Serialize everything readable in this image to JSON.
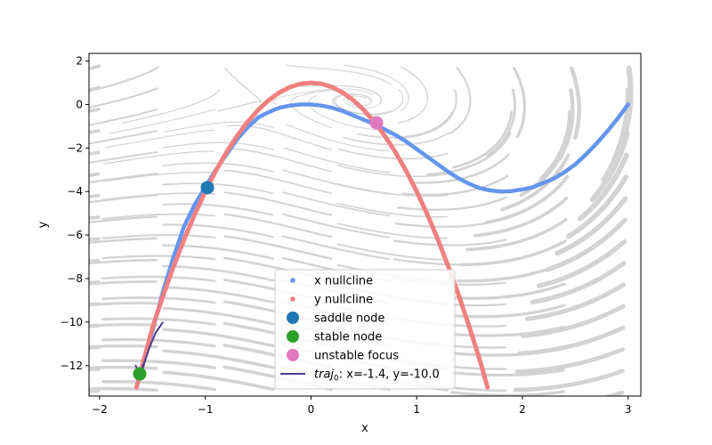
{
  "chart_data": {
    "type": "line",
    "title": "",
    "xlabel": "x",
    "ylabel": "y",
    "xlim": [
      -2.1,
      3.12
    ],
    "ylim": [
      -13.4,
      2.35
    ],
    "xticks": [
      -2,
      -1,
      0,
      1,
      2,
      3
    ],
    "yticks": [
      2,
      0,
      -2,
      -4,
      -6,
      -8,
      -10,
      -12
    ],
    "grid": false,
    "legend_position": "bottom-center",
    "colors": {
      "x_nullcline": "#6495ed",
      "y_nullcline": "#f08080",
      "saddle": "#1f77b4",
      "stable": "#2ca02c",
      "unstable": "#e377c2",
      "trajectory": "#4b3c8c",
      "stream": "#d3d3d3"
    },
    "series": [
      {
        "name": "x nullcline",
        "kind": "points",
        "x": [
          -1.65,
          -1.5,
          -1.4,
          -1.3,
          -1.2,
          -1.1,
          -1.0,
          -0.9,
          -0.8,
          -0.7,
          -0.6,
          -0.5,
          -0.4,
          -0.3,
          -0.2,
          -0.1,
          0.0,
          0.1,
          0.2,
          0.3,
          0.4,
          0.5,
          0.6,
          0.7,
          0.8,
          0.9,
          1.0,
          1.1,
          1.2,
          1.3,
          1.4,
          1.5,
          1.6,
          1.7,
          1.8,
          1.9,
          2.0,
          2.1,
          2.2,
          2.3,
          2.4,
          2.5,
          2.6,
          2.7,
          2.8,
          2.9,
          3.0
        ],
        "y": [
          -13.0,
          -10.4,
          -8.6,
          -7.0,
          -5.6,
          -4.6,
          -3.8,
          -3.0,
          -2.3,
          -1.6,
          -1.05,
          -0.6,
          -0.35,
          -0.15,
          -0.05,
          0.0,
          0.0,
          -0.05,
          -0.15,
          -0.3,
          -0.5,
          -0.7,
          -0.9,
          -1.15,
          -1.4,
          -1.7,
          -2.05,
          -2.4,
          -2.75,
          -3.1,
          -3.4,
          -3.65,
          -3.85,
          -3.95,
          -4.0,
          -3.98,
          -3.9,
          -3.8,
          -3.6,
          -3.4,
          -3.1,
          -2.75,
          -2.3,
          -1.8,
          -1.25,
          -0.65,
          0.0
        ]
      },
      {
        "name": "y nullcline",
        "kind": "points",
        "x": [
          -1.65,
          -1.5,
          -1.4,
          -1.3,
          -1.2,
          -1.1,
          -1.0,
          -0.9,
          -0.8,
          -0.7,
          -0.6,
          -0.5,
          -0.4,
          -0.3,
          -0.2,
          -0.1,
          0.0,
          0.1,
          0.2,
          0.3,
          0.4,
          0.5,
          0.6,
          0.7,
          0.8,
          0.9,
          1.0,
          1.1,
          1.2,
          1.3,
          1.4,
          1.5,
          1.6,
          1.67
        ],
        "y": [
          -13.0,
          -10.25,
          -8.8,
          -7.45,
          -6.2,
          -5.05,
          -4.0,
          -3.05,
          -2.2,
          -1.45,
          -0.8,
          -0.25,
          0.2,
          0.55,
          0.8,
          0.95,
          1.0,
          0.95,
          0.8,
          0.55,
          0.2,
          -0.25,
          -0.8,
          -1.45,
          -2.2,
          -3.05,
          -4.0,
          -5.05,
          -6.2,
          -7.45,
          -8.8,
          -10.25,
          -11.8,
          -13.0
        ]
      },
      {
        "name": "saddle node",
        "kind": "marker",
        "x": [
          -0.98
        ],
        "y": [
          -3.82
        ]
      },
      {
        "name": "stable node",
        "kind": "marker",
        "x": [
          -1.62
        ],
        "y": [
          -12.38
        ]
      },
      {
        "name": "unstable focus",
        "kind": "marker",
        "x": [
          0.62
        ],
        "y": [
          -0.84
        ]
      },
      {
        "name": "traj0_label",
        "kind": "line",
        "x": [
          -1.4,
          -1.47,
          -1.53,
          -1.58,
          -1.62
        ],
        "y": [
          -10.0,
          -10.5,
          -11.2,
          -11.9,
          -12.38
        ]
      }
    ],
    "legend": [
      {
        "prefix": "",
        "italic": "",
        "suffix": "x nullcline"
      },
      {
        "prefix": "",
        "italic": "",
        "suffix": "y nullcline"
      },
      {
        "prefix": "",
        "italic": "",
        "suffix": "saddle node"
      },
      {
        "prefix": "",
        "italic": "",
        "suffix": "stable node"
      },
      {
        "prefix": "",
        "italic": "",
        "suffix": "unstable focus"
      },
      {
        "prefix": "",
        "italic": "traj",
        "sub": "0",
        "suffix": ": x=-1.4, y=-10.0"
      }
    ]
  }
}
